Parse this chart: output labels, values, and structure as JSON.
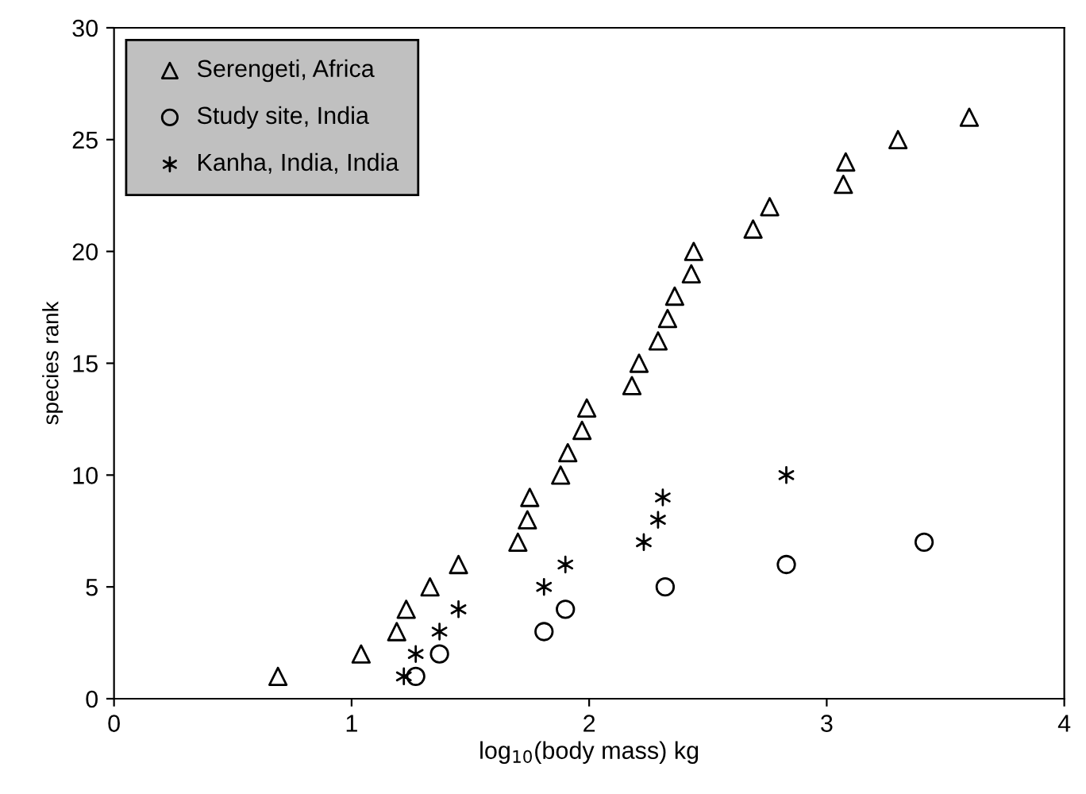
{
  "chart_data": {
    "type": "scatter",
    "xlabel": "log$_{10}$(body mass) kg",
    "ylabel": "species rank",
    "xlim": [
      0,
      4
    ],
    "xticks": [
      0,
      1,
      2,
      3,
      4
    ],
    "ylim": [
      0,
      30
    ],
    "yticks": [
      0,
      5,
      10,
      15,
      20,
      25,
      30
    ],
    "grid": false,
    "legend": "top left",
    "series": [
      {
        "name": "Serengeti, Africa",
        "color": "#000000",
        "marker": "triangle",
        "x": [
          0.69,
          1.04,
          1.19,
          1.23,
          1.33,
          1.45,
          1.7,
          1.74,
          1.75,
          1.88,
          1.91,
          1.97,
          1.99,
          2.18,
          2.21,
          2.29,
          2.33,
          2.36,
          2.43,
          2.44,
          2.69,
          2.76,
          3.07,
          3.08,
          3.3,
          3.6
        ],
        "values": [
          1,
          2,
          3,
          4,
          5,
          6,
          7,
          8,
          9,
          10,
          11,
          12,
          13,
          14,
          15,
          16,
          17,
          18,
          19,
          20,
          21,
          22,
          23,
          24,
          25,
          26
        ]
      },
      {
        "name": "Study site, India",
        "color": "#000000",
        "marker": "circle",
        "x": [
          1.27,
          1.37,
          1.81,
          1.9,
          2.32,
          2.83,
          3.41
        ],
        "values": [
          1,
          2,
          3,
          4,
          5,
          6,
          7
        ]
      },
      {
        "name": "Kanha, India, India",
        "color": "#000000",
        "marker": "cross",
        "x": [
          1.22,
          1.27,
          1.37,
          1.45,
          1.81,
          1.9,
          2.23,
          2.29,
          2.31,
          2.83
        ],
        "values": [
          1,
          2,
          3,
          4,
          5,
          6,
          7,
          8,
          9,
          10
        ]
      }
    ]
  }
}
